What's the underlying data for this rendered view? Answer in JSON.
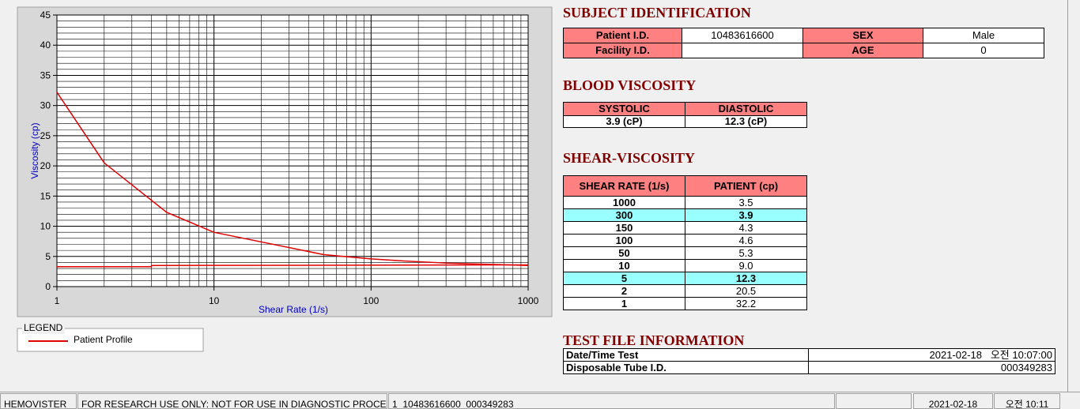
{
  "chart_data": {
    "type": "line",
    "xlabel": "Shear Rate (1/s)",
    "ylabel": "Viscosity (cp)",
    "xscale": "log",
    "xlim": [
      1,
      1000
    ],
    "ylim": [
      0,
      45
    ],
    "xticks": [
      1,
      10,
      100,
      1000
    ],
    "yticks": [
      0,
      5,
      10,
      15,
      20,
      25,
      30,
      35,
      40,
      45
    ],
    "xminorticks": [
      2,
      3,
      4,
      5,
      6,
      7,
      8,
      9,
      20,
      30,
      40,
      50,
      60,
      70,
      80,
      90,
      200,
      300,
      400,
      500,
      600,
      700,
      800,
      900
    ],
    "yminorticks": [
      1,
      2,
      3,
      4,
      6,
      7,
      8,
      9,
      11,
      12,
      13,
      14,
      16,
      17,
      18,
      19,
      21,
      22,
      23,
      24,
      26,
      27,
      28,
      29,
      31,
      32,
      33,
      34,
      36,
      37,
      38,
      39,
      41,
      42,
      43,
      44
    ],
    "grid": true,
    "legend_title": "LEGEND",
    "series": [
      {
        "name": "Patient Profile",
        "color": "#e00000",
        "x": [
          1,
          2,
          5,
          10,
          50,
          100,
          150,
          300,
          1000
        ],
        "values": [
          32.2,
          20.5,
          12.3,
          9.0,
          5.3,
          4.6,
          4.3,
          3.9,
          3.5
        ]
      },
      {
        "color": "#e00000",
        "x": [
          1,
          4,
          4,
          1000
        ],
        "values": [
          3.3,
          3.3,
          3.5,
          3.6
        ]
      }
    ]
  },
  "subject": {
    "title": "SUBJECT IDENTIFICATION",
    "fields": [
      {
        "label": "Patient I.D.",
        "value": "10483616600"
      },
      {
        "label": "SEX",
        "value": "Male"
      },
      {
        "label": "Facility I.D."
      },
      {
        "label": "AGE",
        "value": "0"
      }
    ]
  },
  "blood_viscosity": {
    "title": "BLOOD VISCOSITY",
    "headers": [
      "SYSTOLIC",
      "DIASTOLIC"
    ],
    "values": [
      "3.9 (cP)",
      "12.3 (cP)"
    ]
  },
  "shear_viscosity": {
    "title": "SHEAR-VISCOSITY",
    "headers": [
      "SHEAR RATE (1/s)",
      "PATIENT (cp)"
    ],
    "rows": [
      [
        "1000",
        "3.5"
      ],
      [
        "300",
        "3.9"
      ],
      [
        "150",
        "4.3"
      ],
      [
        "100",
        "4.6"
      ],
      [
        "50",
        "5.3"
      ],
      [
        "10",
        "9.0"
      ],
      [
        "5",
        "12.3"
      ],
      [
        "2",
        "20.5"
      ],
      [
        "1",
        "32.2"
      ]
    ],
    "highlighted": [
      1,
      6
    ]
  },
  "test_file": {
    "title": "TEST FILE INFORMATION",
    "rows": [
      [
        "Date/Time Test",
        "2021-02-18   오전 10:07:00"
      ],
      [
        "Disposable Tube I.D.",
        "000349283"
      ]
    ]
  },
  "status_bar": [
    "HEMOVISTER",
    "FOR RESEARCH USE ONLY: NOT FOR USE IN DIAGNOSTIC PROCEDURES",
    "1  10483616600  000349283",
    "2021-02-18",
    "오전 10:11"
  ]
}
